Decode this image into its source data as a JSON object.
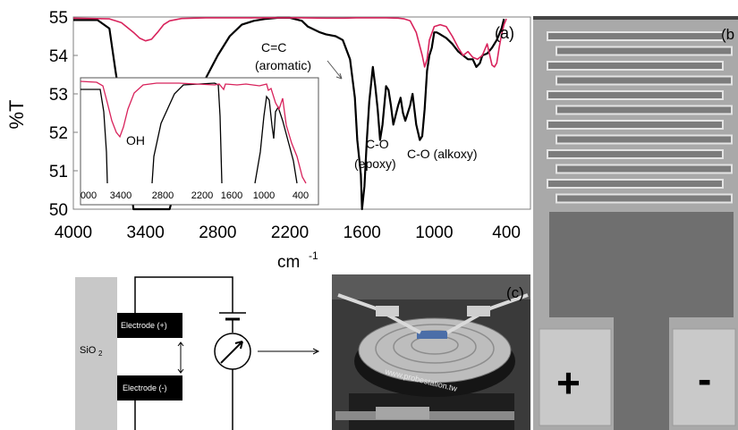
{
  "chart_data": {
    "type": "line",
    "title": "",
    "ylabel": "%T",
    "xlabel": "cm",
    "xlabel_sup": "-1",
    "panel_label": "(a)",
    "xlim": [
      4000,
      200
    ],
    "ylim": [
      50,
      55
    ],
    "x_ticks": [
      "4000",
      "3400",
      "2800",
      "2200",
      "1600",
      "1000",
      "400"
    ],
    "y_ticks": [
      "55",
      "54",
      "53",
      "52",
      "51",
      "50"
    ],
    "annotations": [
      "C=C",
      "(aromatic)",
      "C-O",
      "(epoxy)",
      "C-O (alkoxy)"
    ],
    "series": [
      {
        "color": "#000000",
        "x": [
          4000,
          3800,
          3700,
          3650,
          3580,
          3500,
          3450,
          3200,
          3000,
          2900,
          2800,
          2700,
          2600,
          2500,
          2400,
          2300,
          2200,
          2100,
          2050,
          1950,
          1900,
          1820,
          1760,
          1700,
          1660,
          1640,
          1610,
          1600,
          1580,
          1560,
          1540,
          1510,
          1490,
          1470,
          1450,
          1430,
          1400,
          1380,
          1360,
          1340,
          1300,
          1280,
          1260,
          1240,
          1220,
          1200,
          1180,
          1150,
          1120,
          1100,
          1080,
          1060,
          1040,
          1020,
          1000,
          980,
          950,
          900,
          850,
          800,
          760,
          720,
          680,
          650,
          620,
          600,
          560,
          520,
          480,
          440,
          420
        ],
        "y": [
          54.92,
          54.92,
          54.7,
          53.6,
          52.2,
          50.0,
          50.0,
          50.0,
          52.3,
          53.4,
          54.0,
          54.5,
          54.8,
          54.9,
          54.95,
          54.98,
          54.98,
          54.9,
          54.75,
          54.6,
          54.55,
          54.5,
          54.4,
          53.9,
          52.9,
          51.8,
          50.9,
          50.0,
          50.6,
          51.8,
          52.8,
          53.7,
          53.2,
          52.6,
          51.8,
          52.2,
          53.2,
          53.1,
          52.7,
          52.2,
          52.7,
          52.9,
          52.5,
          52.3,
          52.5,
          52.7,
          53.0,
          52.2,
          51.8,
          51.9,
          52.6,
          53.6,
          54.0,
          54.2,
          54.6,
          54.6,
          54.55,
          54.45,
          54.3,
          54.1,
          54.0,
          53.9,
          53.9,
          53.7,
          53.8,
          54.0,
          54.05,
          54.2,
          54.4,
          54.7,
          54.95
        ]
      },
      {
        "color": "#d8235c",
        "x": [
          4000,
          3700,
          3600,
          3500,
          3450,
          3400,
          3350,
          3300,
          3250,
          3200,
          3100,
          3000,
          2900,
          2700,
          2500,
          2300,
          2100,
          1900,
          1750,
          1650,
          1600,
          1500,
          1400,
          1300,
          1250,
          1200,
          1150,
          1100,
          1080,
          1060,
          1040,
          1000,
          950,
          900,
          850,
          800,
          760,
          720,
          680,
          640,
          600,
          560,
          520,
          500,
          480,
          460,
          440,
          420,
          400
        ],
        "y": [
          54.97,
          54.95,
          54.85,
          54.6,
          54.45,
          54.38,
          54.42,
          54.6,
          54.8,
          54.9,
          54.96,
          54.97,
          54.98,
          54.98,
          54.98,
          54.98,
          54.98,
          54.97,
          54.97,
          54.98,
          54.98,
          54.98,
          54.98,
          54.97,
          54.95,
          54.9,
          54.6,
          54.0,
          53.7,
          53.9,
          54.4,
          54.75,
          54.8,
          54.75,
          54.5,
          54.2,
          54.0,
          54.1,
          53.95,
          53.9,
          54.0,
          54.3,
          53.75,
          53.7,
          53.8,
          54.2,
          54.55,
          54.8,
          54.95
        ]
      }
    ],
    "inset": {
      "x_ticks": [
        "000",
        "3400",
        "2800",
        "2200",
        "1600",
        "1000",
        "400"
      ],
      "annotation": "OH"
    }
  },
  "schematic": {
    "substrate": "SiO",
    "substrate_sub": "2",
    "electrode_pos": "Electrode (+)",
    "electrode_neg": "Electrode (-)"
  },
  "photo_panel": {
    "label": "(c)",
    "brand_text": "www.probestation.tw"
  },
  "micrograph": {
    "label": "(b",
    "plus_symbol": "+",
    "minus_symbol": "-"
  }
}
